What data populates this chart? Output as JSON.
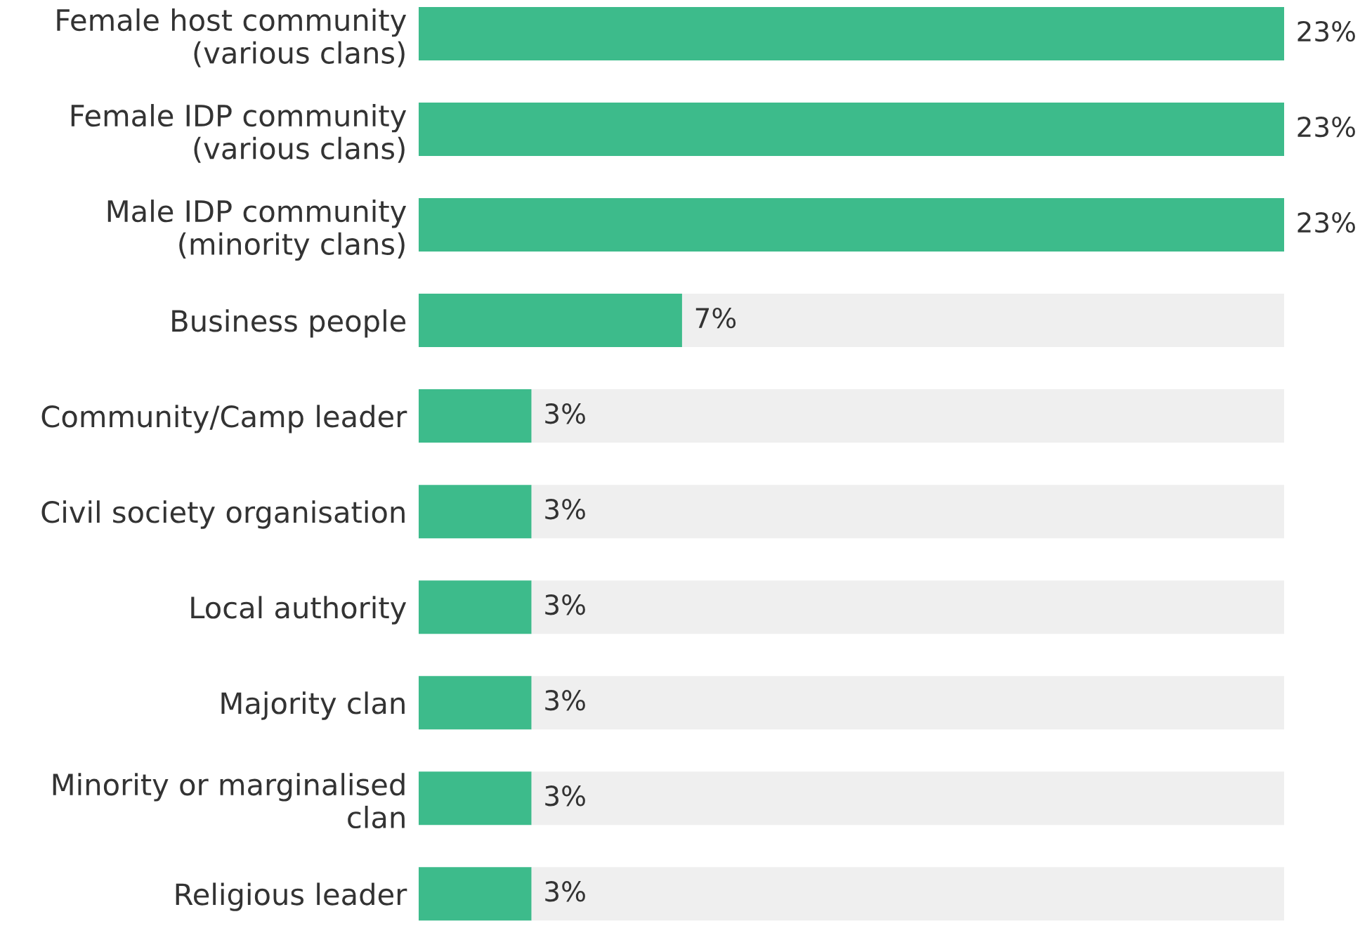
{
  "chart_data": {
    "type": "bar",
    "orientation": "horizontal",
    "stacked": true,
    "tick_labels": "y",
    "xlim": [
      0,
      23
    ],
    "grid": false,
    "categories": [
      "Female host community\n(various clans)",
      "Female IDP community\n(various clans)",
      "Male IDP community\n(minority clans)",
      "Business people",
      "Community/Camp leader",
      "Civil society organisation",
      "Local authority",
      "Majority clan",
      "Minority or marginalised\nclan",
      "Religious leader"
    ],
    "series": [
      {
        "color": "#3dbb8b",
        "values": [
          23,
          23,
          23,
          7,
          3,
          3,
          3,
          3,
          3,
          3
        ],
        "value_labels": [
          "23%",
          "23%",
          "23%",
          "7%",
          "3%",
          "3%",
          "3%",
          "3%",
          "3%",
          "3%"
        ]
      },
      {
        "color": "#efefef",
        "values": [
          0,
          0,
          0,
          16,
          20,
          20,
          20,
          20,
          20,
          20
        ]
      }
    ]
  }
}
